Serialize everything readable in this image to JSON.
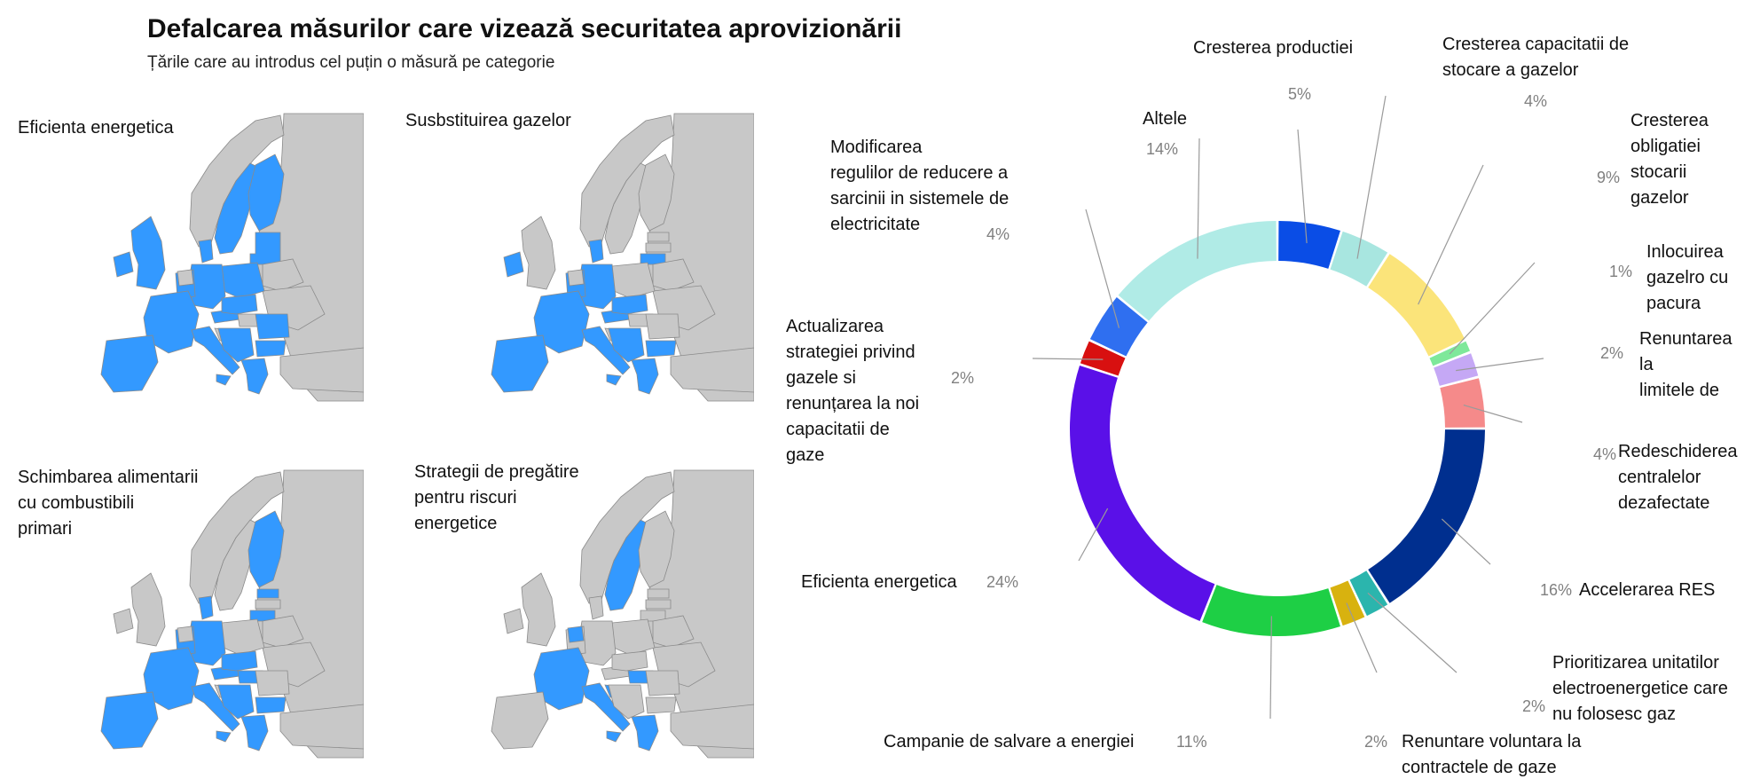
{
  "title": "Defalcarea măsurilor care vizează securitatea aprovizionării",
  "subtitle": "Țările care au introdus cel puțin o măsură pe categorie",
  "maps": [
    {
      "label_lines": [
        "Eficienta energetica"
      ],
      "highlighted": [
        "iberia",
        "france",
        "italy",
        "germany",
        "benelux",
        "austria",
        "central",
        "greece",
        "ireland",
        "sweden",
        "finland",
        "baltics",
        "poland",
        "denmark",
        "balkans_w",
        "uk_ni",
        "romania",
        "bulgaria"
      ]
    },
    {
      "label_lines": [
        "Susbstituirea gazelor"
      ],
      "highlighted": [
        "iberia",
        "france",
        "italy",
        "germany",
        "benelux",
        "austria",
        "central",
        "greece",
        "ireland",
        "lithuania",
        "denmark",
        "balkans_w",
        "bulgaria"
      ]
    },
    {
      "label_lines": [
        "Schimbarea alimentarii",
        "cu combustibili",
        "primari"
      ],
      "highlighted": [
        "iberia",
        "france",
        "italy",
        "germany",
        "benelux",
        "austria",
        "central",
        "greece",
        "finland",
        "estonia",
        "lithuania",
        "denmark",
        "balkans_w",
        "hungary",
        "bulgaria"
      ]
    },
    {
      "label_lines": [
        "Strategii de pregătire",
        "pentru riscuri",
        "energetice"
      ],
      "highlighted": [
        "france",
        "italy",
        "greece",
        "sweden",
        "hungary",
        "croatia",
        "netherlands"
      ]
    }
  ],
  "colors": {
    "map_highlight": "#3399ff",
    "map_base": "#c8c8c8",
    "map_border": "#8a8a8a"
  },
  "chart_data": {
    "type": "pie",
    "donut": true,
    "slices": [
      {
        "label_lines": [
          "Cresterea productiei"
        ],
        "value": 5,
        "pct_label": "5%",
        "color": "#0a4de6"
      },
      {
        "label_lines": [
          "Cresterea capacitatii de",
          "stocare a gazelor"
        ],
        "value": 4,
        "pct_label": "4%",
        "color": "#a8e6e0"
      },
      {
        "label_lines": [
          "Cresterea",
          "obligatiei",
          "stocarii",
          "gazelor"
        ],
        "value": 9,
        "pct_label": "9%",
        "color": "#fbe47a"
      },
      {
        "label_lines": [
          "Inlocuirea",
          "gazelro cu",
          "pacura"
        ],
        "value": 1,
        "pct_label": "1%",
        "color": "#7ee89a"
      },
      {
        "label_lines": [
          "Renuntarea",
          "la",
          "limitele de"
        ],
        "value": 2,
        "pct_label": "2%",
        "color": "#c5a8f5"
      },
      {
        "label_lines": [
          "Redeschiderea",
          "centralelor",
          "dezafectate"
        ],
        "value": 4,
        "pct_label": "4%",
        "color": "#f58a8a"
      },
      {
        "label_lines": [
          "Accelerarea RES"
        ],
        "value": 16,
        "pct_label": "16%",
        "color": "#002f8f"
      },
      {
        "label_lines": [
          "Prioritizarea unitatilor",
          "electroenergetice care",
          "nu folosesc gaz"
        ],
        "value": 2,
        "pct_label": "2%",
        "color": "#2bb5ad"
      },
      {
        "label_lines": [
          "Renuntare voluntara la",
          "contractele de gaze"
        ],
        "value": 2,
        "pct_label": "2%",
        "color": "#d8b20f"
      },
      {
        "label_lines": [
          "Campanie de salvare a energiei"
        ],
        "value": 11,
        "pct_label": "11%",
        "color": "#1ecf45"
      },
      {
        "label_lines": [
          "Eficienta energetica"
        ],
        "value": 24,
        "pct_label": "24%",
        "color": "#5a10e8"
      },
      {
        "label_lines": [
          "Actualizarea",
          "strategiei privind",
          "gazele si",
          "renunțarea la noi",
          "capacitatii de",
          "gaze"
        ],
        "value": 2,
        "pct_label": "2%",
        "color": "#d81010"
      },
      {
        "label_lines": [
          "Modificarea",
          "regulilor de reducere a",
          "sarcinii in sistemele de",
          "electricitate"
        ],
        "value": 4,
        "pct_label": "4%",
        "color": "#2f6ff0"
      },
      {
        "label_lines": [
          "Altele"
        ],
        "value": 14,
        "pct_label": "14%",
        "color": "#b0ebe6"
      }
    ]
  }
}
